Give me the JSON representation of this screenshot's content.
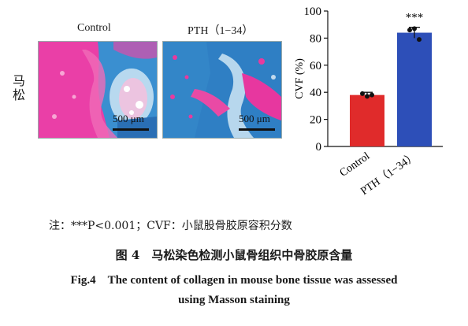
{
  "panels": {
    "row_label": "马松",
    "left_title": "Control",
    "right_title": "PTH（1−34）",
    "scale_left": "500 μm",
    "scale_right": "500 μm"
  },
  "chart_data": {
    "type": "bar",
    "categories": [
      "Control",
      "PTH（1−34）"
    ],
    "values": [
      38,
      84
    ],
    "errors": [
      2,
      4
    ],
    "points": [
      [
        39,
        37,
        38
      ],
      [
        86,
        87,
        79
      ]
    ],
    "colors": [
      "#e02b2b",
      "#2d4fb8"
    ],
    "ylabel": "CVF (%)",
    "ylim": [
      0,
      100
    ],
    "yticks": [
      0,
      20,
      40,
      60,
      80,
      100
    ],
    "annotations": [
      "",
      "***"
    ]
  },
  "caption": {
    "note": "注：***P<0.001；CVF：小鼠股骨胶原容积分数",
    "title_cn": "图 4　马松染色检测小鼠骨组织中骨胶原含量",
    "title_en_line1": "Fig.4　The content of collagen in mouse bone tissue was assessed",
    "title_en_line2": "using Masson staining"
  }
}
